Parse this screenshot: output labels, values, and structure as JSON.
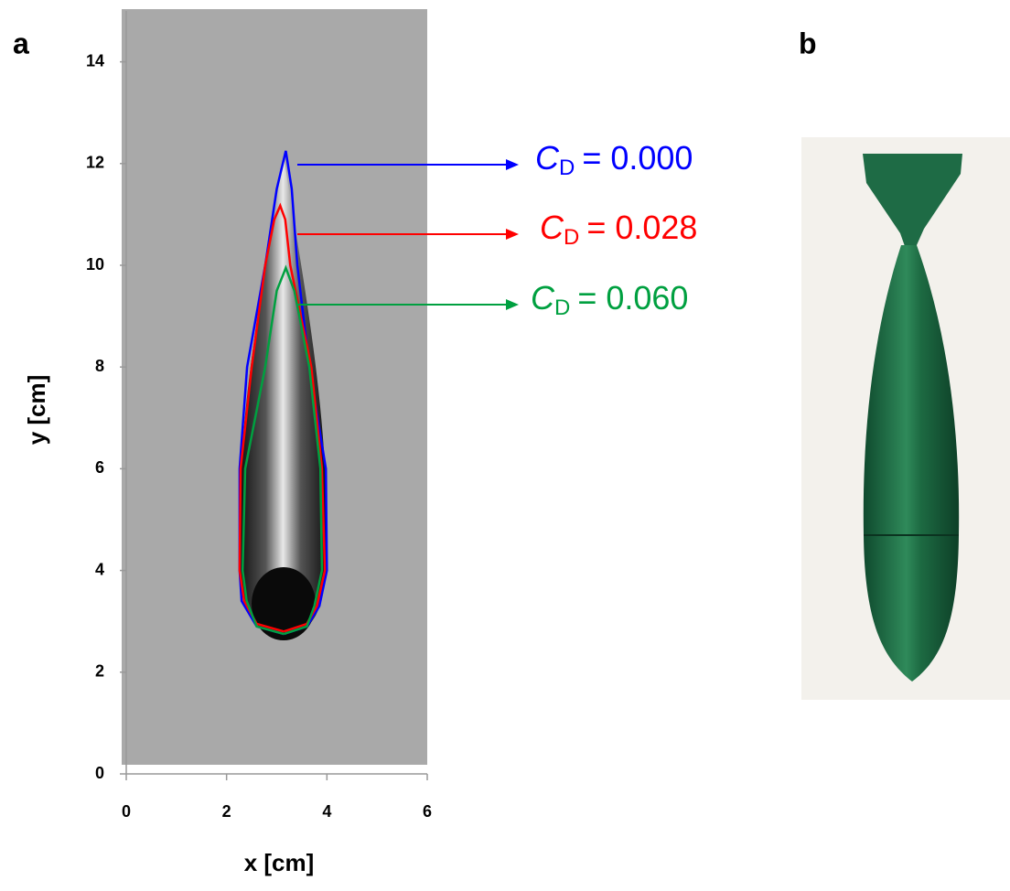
{
  "chart_data": {
    "type": "line",
    "panel_labels": [
      "a",
      "b"
    ],
    "xlabel": "x [cm]",
    "ylabel": "y [cm]",
    "xlim": [
      0,
      6
    ],
    "ylim": [
      0,
      15
    ],
    "xticks": [
      0,
      2,
      4,
      6
    ],
    "yticks": [
      0,
      2,
      4,
      6,
      8,
      10,
      12,
      14
    ],
    "label_symbol": "C",
    "label_subscript": "D",
    "series": [
      {
        "name": "= 0.000",
        "color": "#0000ff",
        "x": [
          3.14,
          2.6,
          2.3,
          2.26,
          2.26,
          2.41,
          2.77,
          3.0,
          3.18,
          3.3,
          3.41,
          3.65,
          3.98,
          4.0,
          3.85,
          3.6,
          3.14
        ],
        "y": [
          2.75,
          2.9,
          3.4,
          4,
          6,
          8,
          10,
          11.5,
          12.25,
          11.5,
          10,
          8,
          6,
          4,
          3.3,
          2.9,
          2.75
        ]
      },
      {
        "name": "= 0.028",
        "color": "#ff0000",
        "x": [
          3.14,
          2.6,
          2.35,
          2.26,
          2.28,
          2.5,
          2.77,
          2.95,
          3.07,
          3.17,
          3.27,
          3.69,
          3.9,
          3.96,
          3.8,
          3.6,
          3.14
        ],
        "y": [
          2.8,
          2.95,
          3.4,
          4,
          6,
          8,
          10,
          10.9,
          11.17,
          10.9,
          10,
          8,
          6,
          4,
          3.3,
          2.95,
          2.8
        ]
      },
      {
        "name": "= 0.060",
        "color": "#00a040",
        "x": [
          3.14,
          2.6,
          2.4,
          2.32,
          2.37,
          2.77,
          3.0,
          3.18,
          3.35,
          3.65,
          3.87,
          3.9,
          3.75,
          3.6,
          3.14
        ],
        "y": [
          2.75,
          2.9,
          3.4,
          4,
          6,
          8,
          9.5,
          9.95,
          9.5,
          8,
          6,
          4,
          3.3,
          2.9,
          2.75
        ]
      }
    ]
  }
}
